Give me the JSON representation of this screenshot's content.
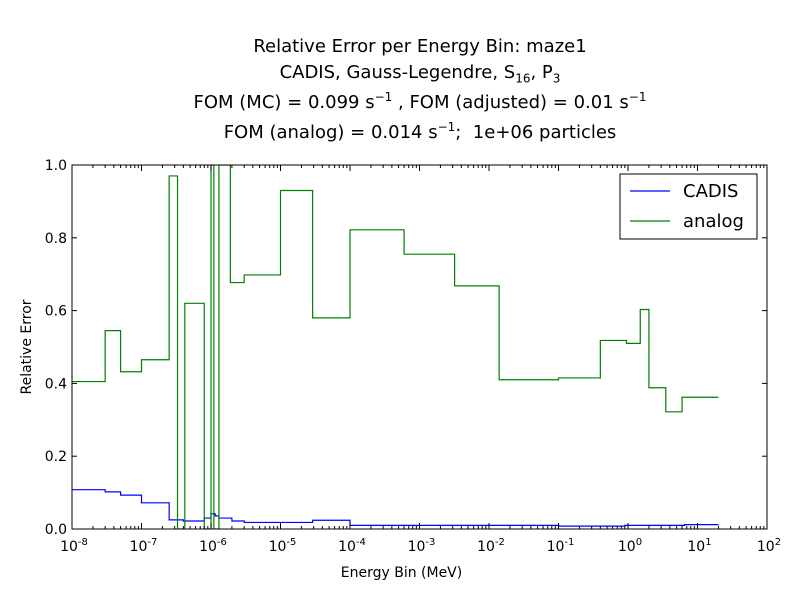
{
  "chart_data": {
    "type": "line",
    "title_lines": [
      "Relative Error per Energy Bin: maze1",
      "CADIS, Gauss-Legendre, S16, P3",
      "FOM (MC) = 0.099 s−1 , FOM (adjusted) = 0.01 s−1",
      "FOM (analog) = 0.014 s−1;  1e+06 particles"
    ],
    "xlabel": "Energy Bin (MeV)",
    "ylabel": "Relative Error",
    "xscale": "log",
    "xlim": [
      1e-08,
      100
    ],
    "ylim": [
      0,
      1.0
    ],
    "x_tick_labels": [
      "10-8",
      "10-7",
      "10-6",
      "10-5",
      "10-4",
      "10-3",
      "10-2",
      "10-1",
      "100",
      "101",
      "102"
    ],
    "y_tick_labels": [
      "0.0",
      "0.2",
      "0.4",
      "0.6",
      "0.8",
      "1.0"
    ],
    "legend_position": "upper right",
    "grid": false,
    "series": [
      {
        "name": "CADIS",
        "color": "#0000ff",
        "x": [
          1e-08,
          3e-08,
          5e-08,
          1e-07,
          2.5e-07,
          4e-07,
          8e-07,
          1e-06,
          1.15e-06,
          1.3e-06,
          2e-06,
          3e-06,
          2.9e-05,
          0.0001,
          0.1,
          0.9,
          6.5
        ],
        "y": [
          0.108,
          0.102,
          0.093,
          0.072,
          0.025,
          0.022,
          0.03,
          0.042,
          0.036,
          0.03,
          0.022,
          0.018,
          0.024,
          0.01,
          0.008,
          0.01,
          0.012
        ],
        "x_end": 20
      },
      {
        "name": "analog",
        "color": "#008000",
        "x": [
          1e-08,
          3e-08,
          5e-08,
          1e-07,
          2.5e-07,
          3.3e-07,
          4.2e-07,
          8e-07,
          1e-06,
          1.1e-06,
          1.3e-06,
          1.9e-06,
          3e-06,
          1e-05,
          2.9e-05,
          0.0001,
          0.0006,
          0.0032,
          0.014,
          0.1,
          0.4,
          0.95,
          1.5,
          2,
          3.5,
          6
        ],
        "y": [
          0.405,
          0.545,
          0.432,
          0.465,
          0.97,
          0.0,
          0.62,
          0.0,
          1.0,
          0.0,
          1.0,
          0.677,
          0.698,
          0.93,
          0.58,
          0.822,
          0.755,
          0.668,
          0.41,
          0.415,
          0.518,
          0.51,
          0.603,
          0.388,
          0.322,
          0.362
        ],
        "x_end": 20
      }
    ]
  }
}
